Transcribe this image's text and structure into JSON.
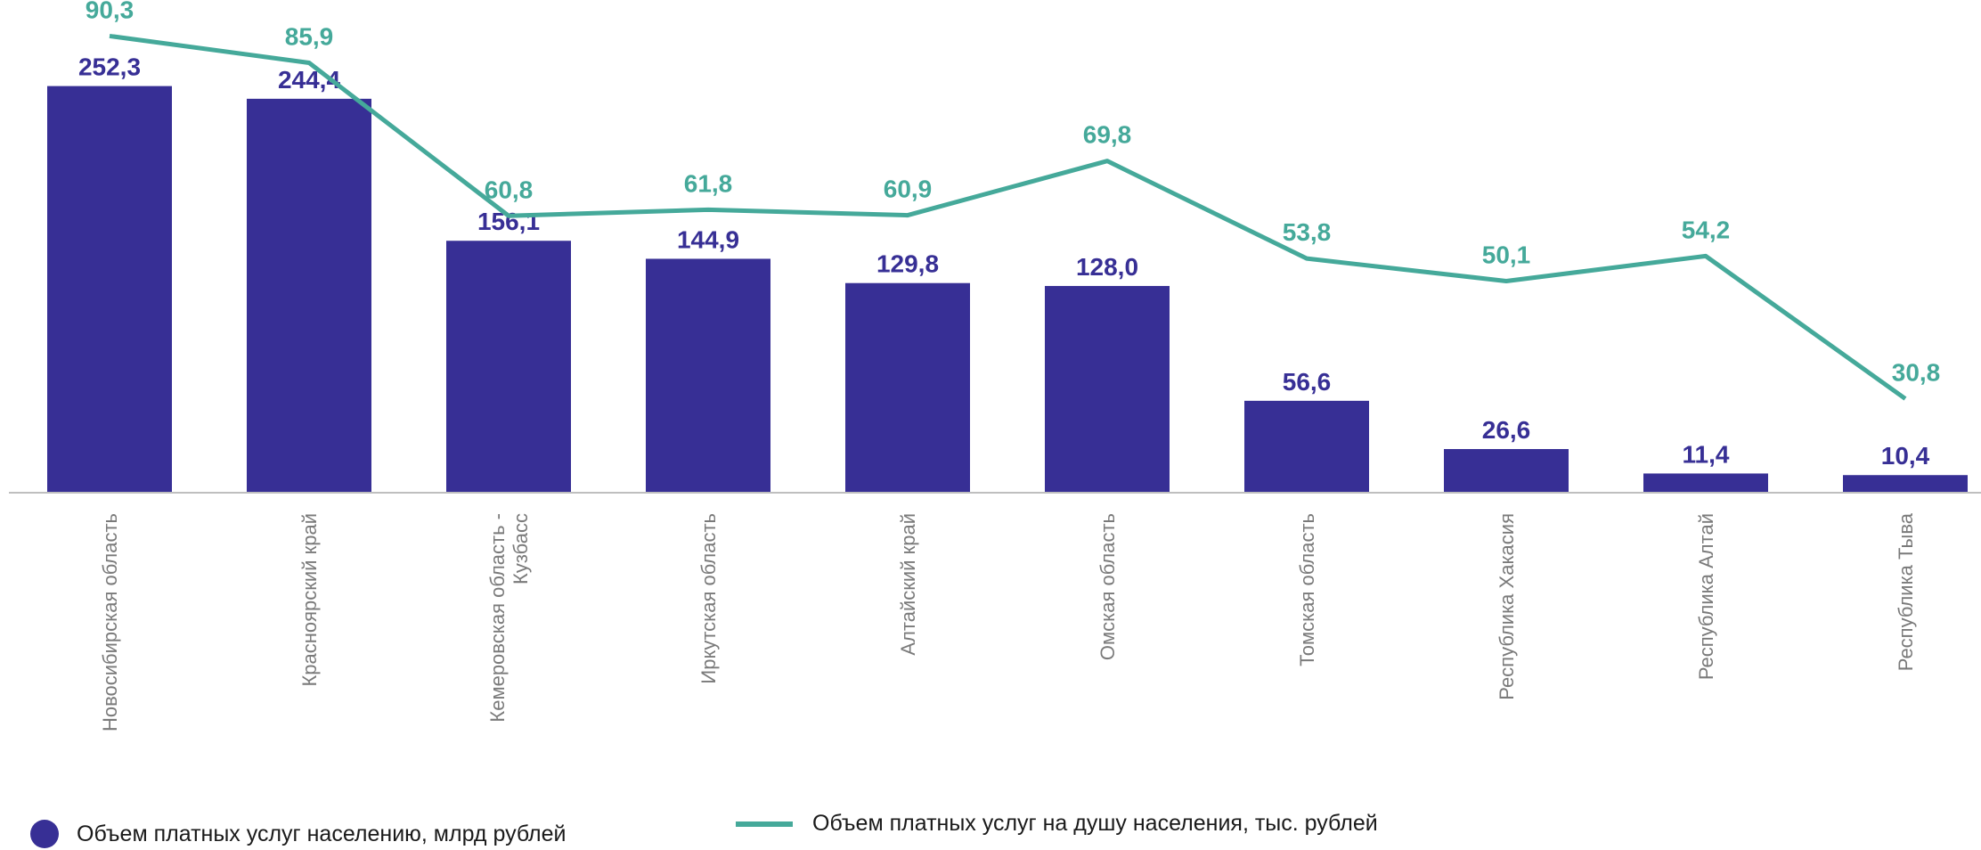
{
  "chart_data": {
    "type": "bar",
    "categories": [
      "Новосибирская область",
      "Красноярский край",
      "Кемеровская область - Кузбасс",
      "Иркутская область",
      "Алтайский край",
      "Омская область",
      "Томская область",
      "Республика Хакасия",
      "Республика Алтай",
      "Республика Тыва"
    ],
    "category_lines": [
      [
        "Новосибирская область"
      ],
      [
        "Красноярский край"
      ],
      [
        "Кемеровская область -",
        "Кузбасс"
      ],
      [
        "Иркутская область"
      ],
      [
        "Алтайский край"
      ],
      [
        "Омская область"
      ],
      [
        "Томская область"
      ],
      [
        "Республика Хакасия"
      ],
      [
        "Республика Алтай"
      ],
      [
        "Республика Тыва"
      ]
    ],
    "series": [
      {
        "name": "Объем платных услуг населению, млрд рублей",
        "type": "bar",
        "color": "#372f95",
        "values": [
          252.3,
          244.4,
          156.1,
          144.9,
          129.8,
          128.0,
          56.6,
          26.6,
          11.4,
          10.4
        ],
        "labels": [
          "252,3",
          "244,4",
          "156,1",
          "144,9",
          "129,8",
          "128,0",
          "56,6",
          "26,6",
          "11,4",
          "10,4"
        ]
      },
      {
        "name": "Объем платных услуг на душу населения, тыс. рублей",
        "type": "line",
        "color": "#45a99a",
        "values": [
          90.3,
          85.9,
          60.8,
          61.8,
          60.9,
          69.8,
          53.8,
          50.1,
          54.2,
          30.8
        ],
        "labels": [
          "90,3",
          "85,9",
          "60,8",
          "61,8",
          "60,9",
          "69,8",
          "53,8",
          "50,1",
          "54,2",
          "30,8"
        ]
      }
    ],
    "legend_position": "bottom",
    "grid": false,
    "axis_color": "#bfbfbf"
  }
}
